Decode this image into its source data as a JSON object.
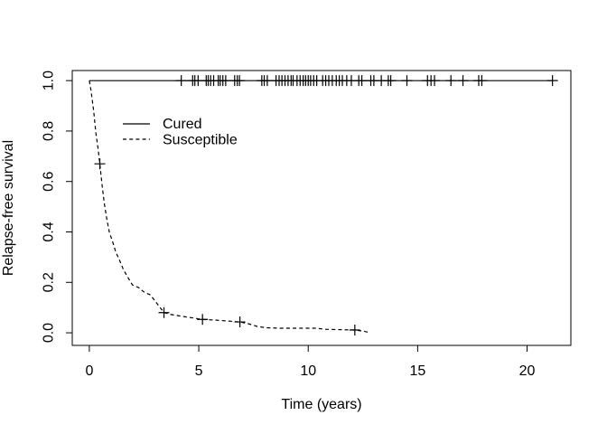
{
  "figure": {
    "background": "#ffffff",
    "foreground": "#000000"
  },
  "chart_data": {
    "type": "line",
    "chart_kind": "kaplan-meier-survival-curves",
    "title": "",
    "xlabel": "Time (years)",
    "ylabel": "Relapse-free survival",
    "xlim": [
      -0.78,
      22.0
    ],
    "ylim": [
      -0.05,
      1.04
    ],
    "x_ticks": [
      0,
      5,
      10,
      15,
      20
    ],
    "x_tick_labels": [
      "0",
      "5",
      "10",
      "15",
      "20"
    ],
    "y_ticks": [
      0.0,
      0.2,
      0.4,
      0.6,
      0.8,
      1.0
    ],
    "y_tick_labels": [
      "0.0",
      "0.2",
      "0.4",
      "0.6",
      "0.8",
      "1.0"
    ],
    "grid": false,
    "legend": {
      "position": "inside-upper-left",
      "entries": [
        {
          "label": "Cured",
          "line_style": "solid"
        },
        {
          "label": "Susceptible",
          "line_style": "dashed"
        }
      ]
    },
    "series": [
      {
        "name": "Cured",
        "line_style": "solid",
        "marker": "plus-censor",
        "points": [
          [
            0,
            1.0
          ],
          [
            21.16,
            1.0
          ]
        ],
        "censors": [
          [
            4.2,
            1
          ],
          [
            4.72,
            1
          ],
          [
            4.82,
            1
          ],
          [
            4.97,
            1
          ],
          [
            5.34,
            1
          ],
          [
            5.43,
            1
          ],
          [
            5.54,
            1
          ],
          [
            5.68,
            1
          ],
          [
            5.89,
            1
          ],
          [
            5.98,
            1
          ],
          [
            6.1,
            1
          ],
          [
            6.23,
            1
          ],
          [
            6.64,
            1
          ],
          [
            6.76,
            1
          ],
          [
            6.86,
            1
          ],
          [
            7.88,
            1
          ],
          [
            7.99,
            1
          ],
          [
            8.13,
            1
          ],
          [
            8.53,
            1
          ],
          [
            8.67,
            1
          ],
          [
            8.8,
            1
          ],
          [
            8.94,
            1
          ],
          [
            9.08,
            1
          ],
          [
            9.22,
            1
          ],
          [
            9.31,
            1
          ],
          [
            9.49,
            1
          ],
          [
            9.63,
            1
          ],
          [
            9.77,
            1
          ],
          [
            9.88,
            1
          ],
          [
            10,
            1
          ],
          [
            10.11,
            1
          ],
          [
            10.25,
            1
          ],
          [
            10.39,
            1
          ],
          [
            10.66,
            1
          ],
          [
            10.8,
            1
          ],
          [
            10.94,
            1
          ],
          [
            11.1,
            1
          ],
          [
            11.28,
            1
          ],
          [
            11.42,
            1
          ],
          [
            11.56,
            1
          ],
          [
            11.76,
            1
          ],
          [
            11.97,
            1
          ],
          [
            12.31,
            1
          ],
          [
            12.45,
            1
          ],
          [
            12.86,
            1
          ],
          [
            13,
            1
          ],
          [
            13.34,
            1
          ],
          [
            13.66,
            1
          ],
          [
            13.77,
            1
          ],
          [
            14.51,
            1
          ],
          [
            15.45,
            1
          ],
          [
            15.61,
            1
          ],
          [
            15.77,
            1
          ],
          [
            16.52,
            1
          ],
          [
            17.07,
            1
          ],
          [
            17.79,
            1
          ],
          [
            17.93,
            1
          ],
          [
            21.16,
            1
          ]
        ]
      },
      {
        "name": "Susceptible",
        "line_style": "dashed",
        "marker": "plus-censor",
        "points": [
          [
            0,
            1.0
          ],
          [
            0.08,
            0.96
          ],
          [
            0.2,
            0.88
          ],
          [
            0.3,
            0.79
          ],
          [
            0.4,
            0.73
          ],
          [
            0.48,
            0.67
          ],
          [
            0.59,
            0.58
          ],
          [
            0.69,
            0.51
          ],
          [
            0.8,
            0.45
          ],
          [
            0.91,
            0.4
          ],
          [
            1.07,
            0.36
          ],
          [
            1.21,
            0.32
          ],
          [
            1.37,
            0.29
          ],
          [
            1.56,
            0.25
          ],
          [
            1.76,
            0.22
          ],
          [
            1.97,
            0.19
          ],
          [
            2.24,
            0.18
          ],
          [
            2.52,
            0.16
          ],
          [
            2.79,
            0.15
          ],
          [
            3.41,
            0.08
          ],
          [
            3.76,
            0.072
          ],
          [
            5.17,
            0.053
          ],
          [
            5.82,
            0.05
          ],
          [
            6.88,
            0.043
          ],
          [
            7.26,
            0.036
          ],
          [
            7.68,
            0.025
          ],
          [
            8.09,
            0.02
          ],
          [
            8.71,
            0.018
          ],
          [
            10.36,
            0.018
          ],
          [
            10.77,
            0.014
          ],
          [
            12.13,
            0.011
          ],
          [
            12.55,
            0.006
          ],
          [
            12.75,
            0.002
          ]
        ],
        "censors": [
          [
            0.48,
            0.67
          ],
          [
            3.41,
            0.08
          ],
          [
            5.17,
            0.053
          ],
          [
            6.88,
            0.043
          ],
          [
            12.13,
            0.011
          ]
        ]
      }
    ],
    "colors": {
      "line": "#000000",
      "background": "#ffffff"
    }
  }
}
